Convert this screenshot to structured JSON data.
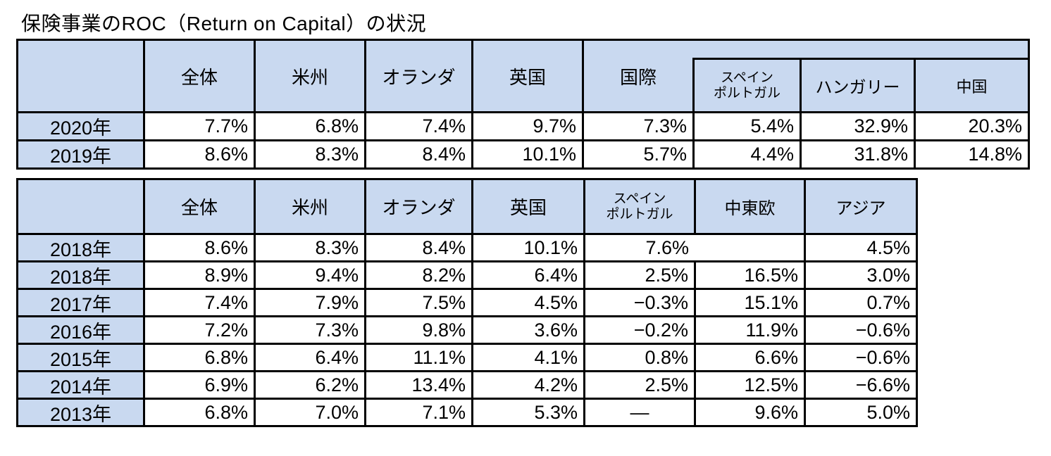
{
  "title": "保険事業のROC（Return on Capital）の状況",
  "colors": {
    "header_fill": "#C9D9F0",
    "border_color": "#000000",
    "text_color": "#000000"
  },
  "table1": {
    "columns": [
      "",
      "全体",
      "米州",
      "オランダ",
      "英国",
      "国際"
    ],
    "sub_columns": [
      "スペイン\nポルトガル",
      "ハンガリー",
      "中国"
    ],
    "rows": [
      {
        "label": "2020年",
        "values": [
          "7.7%",
          "6.8%",
          "7.4%",
          "9.7%",
          "7.3%",
          "5.4%",
          "32.9%",
          "20.3%"
        ]
      },
      {
        "label": "2019年",
        "values": [
          "8.6%",
          "8.3%",
          "8.4%",
          "10.1%",
          "5.7%",
          "4.4%",
          "31.8%",
          "14.8%"
        ]
      }
    ]
  },
  "table2": {
    "columns": [
      "",
      "全体",
      "米州",
      "オランダ",
      "英国",
      "スペイン\nポルトガル",
      "中東欧",
      "アジア"
    ],
    "rows": [
      {
        "label": "2018年",
        "values": [
          "8.6%",
          "8.3%",
          "8.4%",
          "10.1%",
          "7.6%",
          "4.5%"
        ],
        "merged_spain_cee": true
      },
      {
        "label": "2018年",
        "values": [
          "8.9%",
          "9.4%",
          "8.2%",
          "6.4%",
          "2.5%",
          "16.5%",
          "3.0%"
        ]
      },
      {
        "label": "2017年",
        "values": [
          "7.4%",
          "7.9%",
          "7.5%",
          "4.5%",
          "−0.3%",
          "15.1%",
          "0.7%"
        ]
      },
      {
        "label": "2016年",
        "values": [
          "7.2%",
          "7.3%",
          "9.8%",
          "3.6%",
          "−0.2%",
          "11.9%",
          "−0.6%"
        ]
      },
      {
        "label": "2015年",
        "values": [
          "6.8%",
          "6.4%",
          "11.1%",
          "4.1%",
          "0.8%",
          "6.6%",
          "−0.6%"
        ]
      },
      {
        "label": "2014年",
        "values": [
          "6.9%",
          "6.2%",
          "13.4%",
          "4.2%",
          "2.5%",
          "12.5%",
          "−6.6%"
        ]
      },
      {
        "label": "2013年",
        "values": [
          "6.8%",
          "7.0%",
          "7.1%",
          "5.3%",
          "―",
          "9.6%",
          "5.0%"
        ]
      }
    ]
  }
}
